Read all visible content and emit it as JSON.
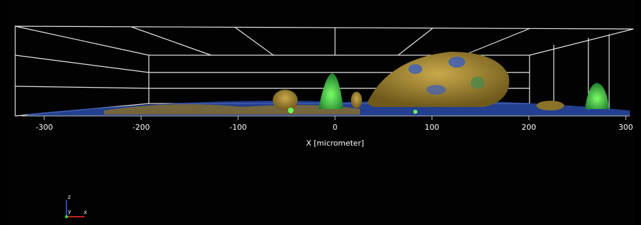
{
  "axis": {
    "label": "X [micrometer]",
    "ticks": [
      -300,
      -200,
      -100,
      0,
      100,
      200,
      300
    ]
  },
  "triad": {
    "z": "z",
    "y": "y",
    "x": "x"
  }
}
